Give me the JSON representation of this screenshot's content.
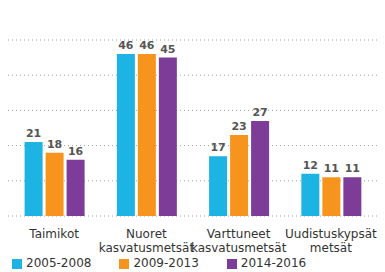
{
  "chart_data": {
    "type": "bar",
    "categories": [
      "Taimikot",
      "Nuoret kasvatusmetsät",
      "Varttuneet kasvatusmetsät",
      "Uudistuskypsät metsät"
    ],
    "series": [
      {
        "name": "2005-2008",
        "color": "#1db3e3",
        "values": [
          21,
          46,
          17,
          12
        ]
      },
      {
        "name": "2009-2013",
        "color": "#f7941d",
        "values": [
          18,
          46,
          23,
          11
        ]
      },
      {
        "name": "2014-2016",
        "color": "#7d3c98",
        "values": [
          16,
          45,
          27,
          11
        ]
      }
    ],
    "ylim": [
      0,
      50
    ],
    "yticks": [
      0,
      10,
      20,
      30,
      40,
      50
    ],
    "grid": true,
    "data_labels": true,
    "tick_labels": "x",
    "legend": "bottom"
  }
}
